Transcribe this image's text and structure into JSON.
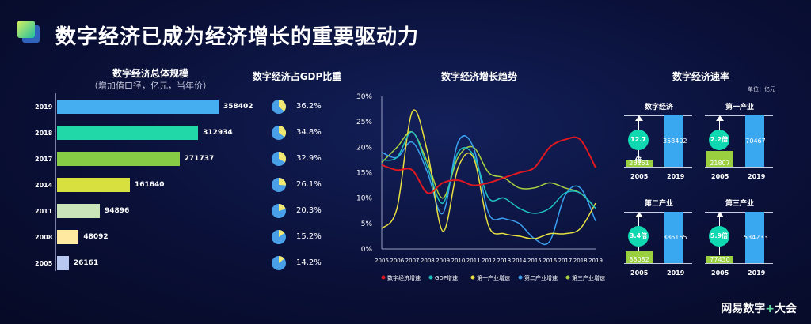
{
  "header": {
    "title": "数字经济已成为经济增长的重要驱动力"
  },
  "scale": {
    "title": "数字经济总体规模",
    "subtitle": "（增加值口径，亿元，当年价）"
  },
  "share": {
    "title": "数字经济占GDP比重"
  },
  "trend": {
    "title": "数字经济增长趋势"
  },
  "speed": {
    "title": "数字经济速率",
    "unit": "单位：亿元"
  },
  "brand": {
    "text": "网易数字",
    "plus": "+",
    "suffix": "大会"
  },
  "colors": {
    "bars": [
      "#44aef0",
      "#20d8a8",
      "#86cc44",
      "#d8e040",
      "#c8e4b8",
      "#ffe9a0",
      "#b8c8f0"
    ],
    "digital": "#e01820",
    "gdp": "#20c0c0",
    "primary": "#e8e040",
    "secondary": "#3aa0f0",
    "tertiary": "#a8d040",
    "blue_bar": "#3aa8f0",
    "green_bar": "#9ad040",
    "teal_circle": "#10d8b0"
  },
  "chart_data": [
    {
      "type": "bar",
      "orientation": "horizontal",
      "title": "数字经济总体规模",
      "subtitle": "（增加值口径，亿元，当年价）",
      "categories": [
        "2019",
        "2018",
        "2017",
        "2014",
        "2011",
        "2008",
        "2005"
      ],
      "values": [
        358402,
        312934,
        271737,
        161640,
        94896,
        48092,
        26161
      ],
      "labels": [
        "358402",
        "312934",
        "271737",
        "161640",
        "94896",
        "48092",
        "26161"
      ]
    },
    {
      "type": "pie",
      "title": "数字经济占GDP比重",
      "categories": [
        "2019",
        "2018",
        "2017",
        "2014",
        "2011",
        "2008",
        "2005"
      ],
      "values": [
        36.2,
        34.8,
        32.9,
        26.1,
        20.3,
        15.2,
        14.2
      ],
      "labels": [
        "36.2%",
        "34.8%",
        "32.9%",
        "26.1%",
        "20.3%",
        "15.2%",
        "14.2%"
      ]
    },
    {
      "type": "line",
      "title": "数字经济增长趋势",
      "x": [
        "2005",
        "2006",
        "2007",
        "2008",
        "2009",
        "2010",
        "2011",
        "2012",
        "2013",
        "2014",
        "2015",
        "2016",
        "2017",
        "2018",
        "2019"
      ],
      "yticks": [
        "0%",
        "5%",
        "10%",
        "15%",
        "20%",
        "25%",
        "30%"
      ],
      "ylim": [
        0,
        30
      ],
      "series": [
        {
          "name": "数字经济增速",
          "values": [
            16.5,
            15.5,
            15.5,
            11,
            13,
            13.5,
            12.5,
            13,
            14,
            15,
            16,
            20,
            21.5,
            21.5,
            16
          ]
        },
        {
          "name": "GDP增速",
          "values": [
            17.5,
            18,
            23,
            16,
            9,
            19,
            18.5,
            10,
            10,
            8,
            7,
            8,
            11,
            11,
            8
          ]
        },
        {
          "name": "第一产业增速",
          "values": [
            4,
            8,
            27,
            19,
            3.5,
            16,
            18,
            4.5,
            3,
            2.5,
            2,
            3,
            3,
            4,
            9
          ]
        },
        {
          "name": "第二产业增速",
          "values": [
            19,
            18,
            21,
            15,
            7,
            21,
            20,
            7,
            6,
            5,
            2,
            1.5,
            10.5,
            12,
            5.5
          ]
        },
        {
          "name": "第三产业增速",
          "values": [
            17,
            20,
            23,
            17,
            10,
            18,
            20,
            15,
            14,
            12,
            12,
            13,
            12,
            11,
            8
          ]
        }
      ]
    },
    {
      "type": "bar",
      "title": "数字经济",
      "categories": [
        "2005",
        "2019"
      ],
      "values": [
        26161,
        358402
      ],
      "labels": [
        "26161",
        "358402"
      ],
      "annotation": "12.7倍"
    },
    {
      "type": "bar",
      "title": "第一产业",
      "categories": [
        "2005",
        "2019"
      ],
      "values": [
        21807,
        70467
      ],
      "labels": [
        "21807",
        "70467"
      ],
      "annotation": "2.2倍"
    },
    {
      "type": "bar",
      "title": "第二产业",
      "categories": [
        "2005",
        "2019"
      ],
      "values": [
        88082,
        386165
      ],
      "labels": [
        "88082",
        "386165"
      ],
      "annotation": "3.4倍"
    },
    {
      "type": "bar",
      "title": "第三产业",
      "categories": [
        "2005",
        "2019"
      ],
      "values": [
        77430,
        534233
      ],
      "labels": [
        "77430",
        "534233"
      ],
      "annotation": "5.9倍"
    }
  ]
}
